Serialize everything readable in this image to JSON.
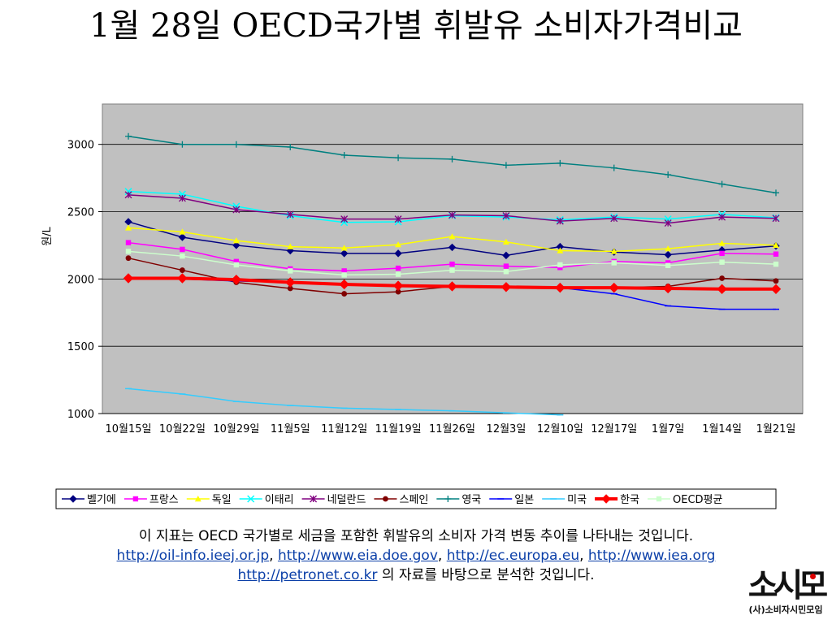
{
  "title": "1월 28일 OECD국가별 휘발유 소비자가격비교",
  "caption": {
    "line1": "이 지표는 OECD 국가별로 세금을 포함한 휘발유의 소비자 가격 변동 추이를 나타내는 것입니다.",
    "links1": [
      "http://oil-info.ieej.or.jp",
      "http://www.eia.doe.gov",
      "http://ec.europa.eu",
      "http://www.iea.org"
    ],
    "separator": ", ",
    "link2": "http://petronet.co.kr",
    "line3_suffix": " 의 자료를 바탕으로 분석한 것입니다."
  },
  "logo": {
    "mark": "소시모",
    "sub": "(사)소비자시민모임"
  },
  "chart_data": {
    "type": "line",
    "ylabel": "원/L",
    "xlabel": "",
    "ylim": [
      1000,
      3300
    ],
    "yticks": [
      1000,
      1500,
      2000,
      2500,
      3000
    ],
    "grid": true,
    "legend_position": "bottom",
    "plot_bg": "#c0c0c0",
    "categories": [
      "10월15일",
      "10월22일",
      "10월29일",
      "11월5일",
      "11월12일",
      "11월19일",
      "11월26일",
      "12월3일",
      "12월10일",
      "12월17일",
      "1월7일",
      "1월14일",
      "1월21일"
    ],
    "series": [
      {
        "name": "벨기에",
        "color": "#000080",
        "marker": "diamond",
        "values": [
          2425,
          2310,
          2250,
          2210,
          2190,
          2190,
          2235,
          2175,
          2240,
          2200,
          2180,
          2215,
          2245
        ]
      },
      {
        "name": "프랑스",
        "color": "#ff00ff",
        "marker": "square",
        "values": [
          2270,
          2220,
          2130,
          2075,
          2060,
          2080,
          2110,
          2095,
          2085,
          2130,
          2120,
          2190,
          2185
        ]
      },
      {
        "name": "독일",
        "color": "#ffff00",
        "marker": "triangle",
        "values": [
          2380,
          2350,
          2285,
          2240,
          2230,
          2255,
          2315,
          2275,
          2210,
          2205,
          2225,
          2265,
          2250
        ]
      },
      {
        "name": "이태리",
        "color": "#00ffff",
        "marker": "x",
        "values": [
          2650,
          2630,
          2540,
          2470,
          2420,
          2425,
          2470,
          2460,
          2440,
          2460,
          2445,
          2480,
          2455
        ]
      },
      {
        "name": "네덜란드",
        "color": "#800080",
        "marker": "star",
        "values": [
          2625,
          2600,
          2515,
          2480,
          2445,
          2445,
          2475,
          2470,
          2430,
          2450,
          2415,
          2460,
          2450
        ]
      },
      {
        "name": "스페인",
        "color": "#800000",
        "marker": "circle",
        "values": [
          2155,
          2065,
          1975,
          1930,
          1890,
          1905,
          1945,
          1940,
          1930,
          1935,
          1945,
          2005,
          1985
        ]
      },
      {
        "name": "영국",
        "color": "#008080",
        "marker": "plus",
        "values": [
          3060,
          3000,
          3000,
          2980,
          2920,
          2900,
          2890,
          2845,
          2860,
          2825,
          2775,
          2705,
          2640
        ]
      },
      {
        "name": "일본",
        "color": "#0000ff",
        "marker": "dash",
        "values": [
          2000,
          2000,
          1985,
          1975,
          1965,
          1955,
          1945,
          1940,
          1935,
          1890,
          1800,
          1775,
          1775
        ]
      },
      {
        "name": "미국",
        "color": "#33ccff",
        "marker": "dash",
        "values": [
          1185,
          1145,
          1090,
          1060,
          1040,
          1030,
          1020,
          1005,
          990,
          null,
          null,
          null,
          null
        ]
      },
      {
        "name": "한국",
        "color": "#ff0000",
        "marker": "diamond",
        "values": [
          2005,
          2005,
          1995,
          1975,
          1960,
          1950,
          1945,
          1940,
          1935,
          1935,
          1930,
          1925,
          1925
        ]
      },
      {
        "name": "OECD평균",
        "color": "#ccffcc",
        "marker": "square",
        "values": [
          2205,
          2170,
          2105,
          2060,
          2030,
          2035,
          2065,
          2055,
          2105,
          2120,
          2100,
          2125,
          2110
        ]
      }
    ]
  }
}
